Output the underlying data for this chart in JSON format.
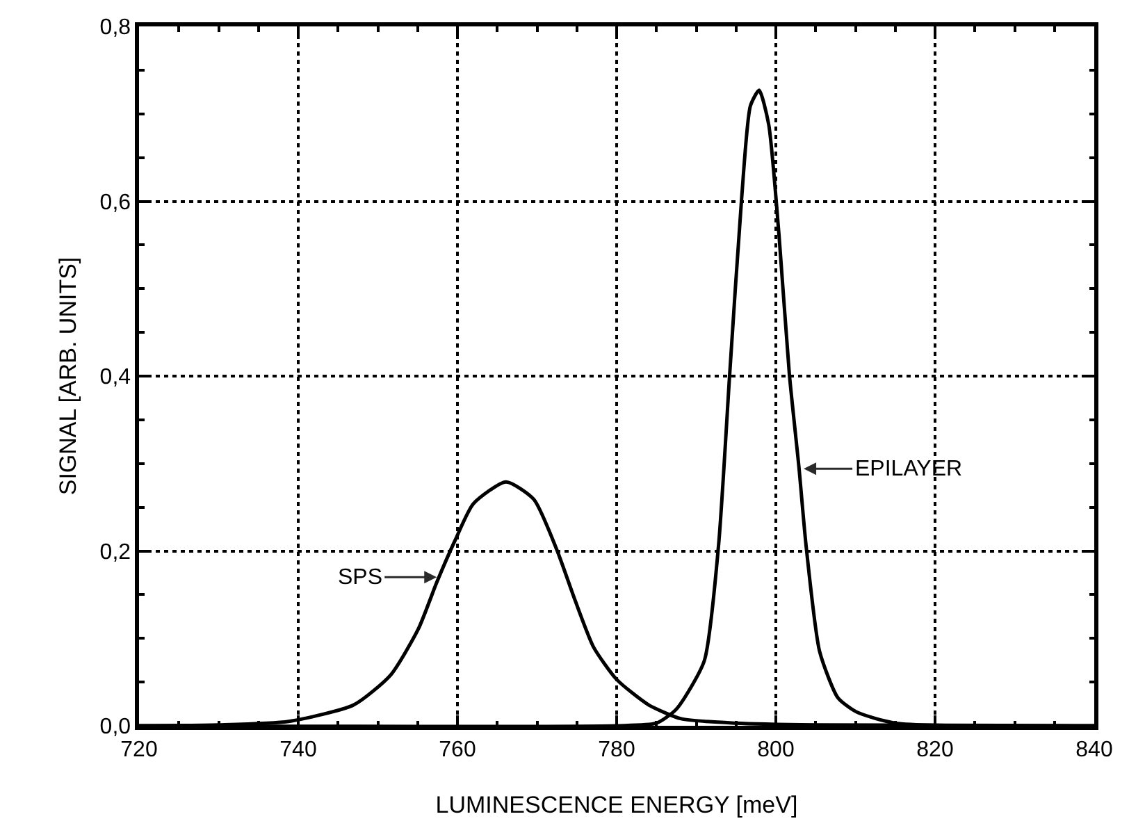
{
  "chart_data": {
    "type": "line",
    "xlabel": "LUMINESCENCE ENERGY [meV]",
    "ylabel": "SIGNAL [ARB. UNITS]",
    "xlim": [
      720,
      840
    ],
    "xticks": [
      720,
      740,
      760,
      780,
      800,
      820,
      840
    ],
    "ylim": [
      0,
      0.8
    ],
    "yticks": [
      {
        "value": 0,
        "label": "0,0"
      },
      {
        "value": 0.2,
        "label": "0,2"
      },
      {
        "value": 0.4,
        "label": "0,4"
      },
      {
        "value": 0.6,
        "label": "0,6"
      },
      {
        "value": 0.8,
        "label": "0,8"
      }
    ],
    "grid": true,
    "marker": "none",
    "line_style": "solid",
    "series": [
      {
        "color": "#000000",
        "x": [
          720,
          730,
          738.8,
          747,
          751.6,
          755.1,
          757.4,
          759.7,
          762,
          766.1,
          769.6,
          772.5,
          774.8,
          777.1,
          780,
          784,
          788.1,
          795,
          805,
          840
        ],
        "values": [
          0,
          0.001,
          0.005,
          0.024,
          0.058,
          0.111,
          0.164,
          0.212,
          0.254,
          0.279,
          0.259,
          0.201,
          0.143,
          0.09,
          0.053,
          0.024,
          0.008,
          0.003,
          0.001,
          0
        ]
      },
      {
        "color": "#000000",
        "x": [
          720,
          780,
          785,
          787.5,
          791,
          792.8,
          794.2,
          795.7,
          796.8,
          797.9,
          799.1,
          800.4,
          801.7,
          802.9,
          803.8,
          805.5,
          807.8,
          810.1,
          815,
          840
        ],
        "values": [
          0,
          0,
          0.003,
          0.019,
          0.074,
          0.206,
          0.402,
          0.603,
          0.709,
          0.727,
          0.688,
          0.561,
          0.402,
          0.296,
          0.206,
          0.085,
          0.032,
          0.016,
          0.003,
          0
        ]
      }
    ],
    "annotations": [
      {
        "text": "SPS",
        "x": 757.4,
        "y": 0.17
      },
      {
        "text": "EPILAYER",
        "x": 803.5,
        "y": 0.294
      }
    ]
  }
}
